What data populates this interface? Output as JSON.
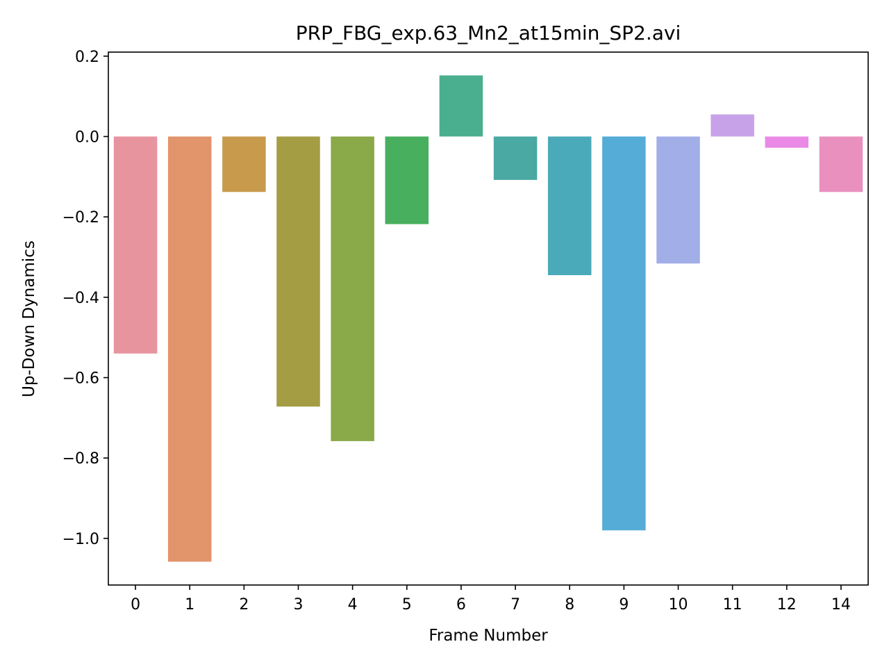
{
  "chart_data": {
    "type": "bar",
    "title": "PRP_FBG_exp.63_Mn2_at15min_SP2.avi",
    "xlabel": "Frame Number",
    "ylabel": "Up-Down Dynamics",
    "categories": [
      "0",
      "1",
      "2",
      "3",
      "4",
      "5",
      "6",
      "7",
      "8",
      "9",
      "10",
      "11",
      "12",
      "14"
    ],
    "values": [
      -0.54,
      -1.058,
      -0.138,
      -0.672,
      -0.758,
      -0.218,
      0.152,
      -0.108,
      -0.345,
      -0.98,
      -0.316,
      0.055,
      -0.028,
      -0.138
    ],
    "colors": [
      "#e8949f",
      "#e2946b",
      "#c79a4c",
      "#a49d44",
      "#8aa948",
      "#47af5e",
      "#4aaf8e",
      "#4aa9a2",
      "#4baab9",
      "#55acd6",
      "#a1aee8",
      "#c8a2e8",
      "#ea8ae6",
      "#ea90bf"
    ],
    "ylim": [
      -1.116,
      0.21
    ],
    "yticks": [
      0.2,
      0.0,
      -0.2,
      -0.4,
      -0.6,
      -0.8,
      -1.0
    ],
    "ytick_labels": [
      "0.2",
      "0.0",
      "−0.2",
      "−0.4",
      "−0.6",
      "−0.8",
      "−1.0"
    ],
    "grid": false,
    "legend": "none"
  }
}
